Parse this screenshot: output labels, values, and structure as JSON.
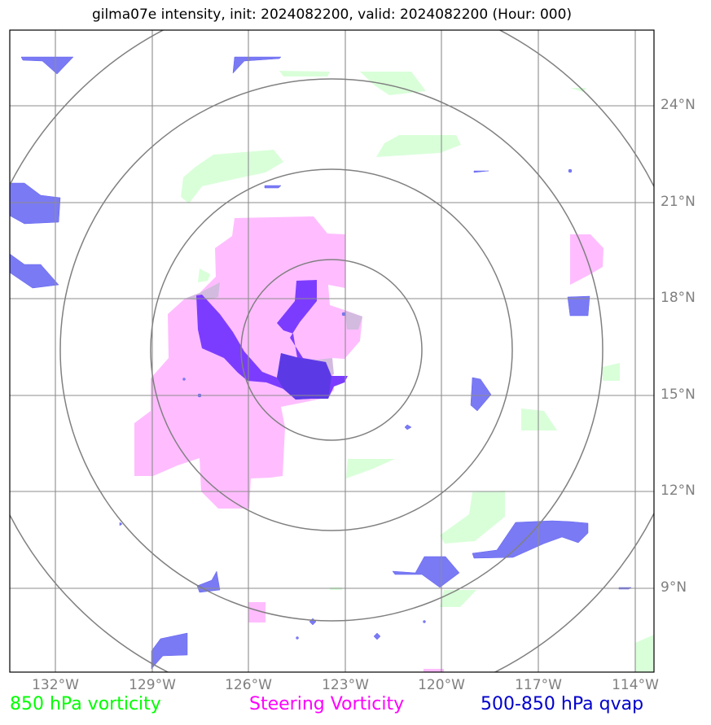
{
  "title": "gilma07e intensity, init: 2024082200, valid: 2024082200 (Hour: 000)",
  "map": {
    "lon_ticks": [
      "132°W",
      "129°W",
      "126°W",
      "123°W",
      "120°W",
      "117°W",
      "114°W"
    ],
    "lat_ticks": [
      "24°N",
      "21°N",
      "18°N",
      "15°N",
      "12°N",
      "9°N"
    ],
    "extent": {
      "lon_min": -133.4,
      "lon_max": -113.4,
      "lat_min": 6.6,
      "lat_max": 26.6
    },
    "storm_center": {
      "lon": -123.45,
      "lat": 16.45
    },
    "range_rings_count": 4
  },
  "legend": {
    "vorticity_850": {
      "label": "850 hPa vorticity",
      "color": "#00ff00"
    },
    "steering_vorticity": {
      "label": "Steering Vorticity",
      "color": "#ff00ff"
    },
    "qvap": {
      "label": "500-850 hPa qvap",
      "color": "#0000cc"
    }
  }
}
